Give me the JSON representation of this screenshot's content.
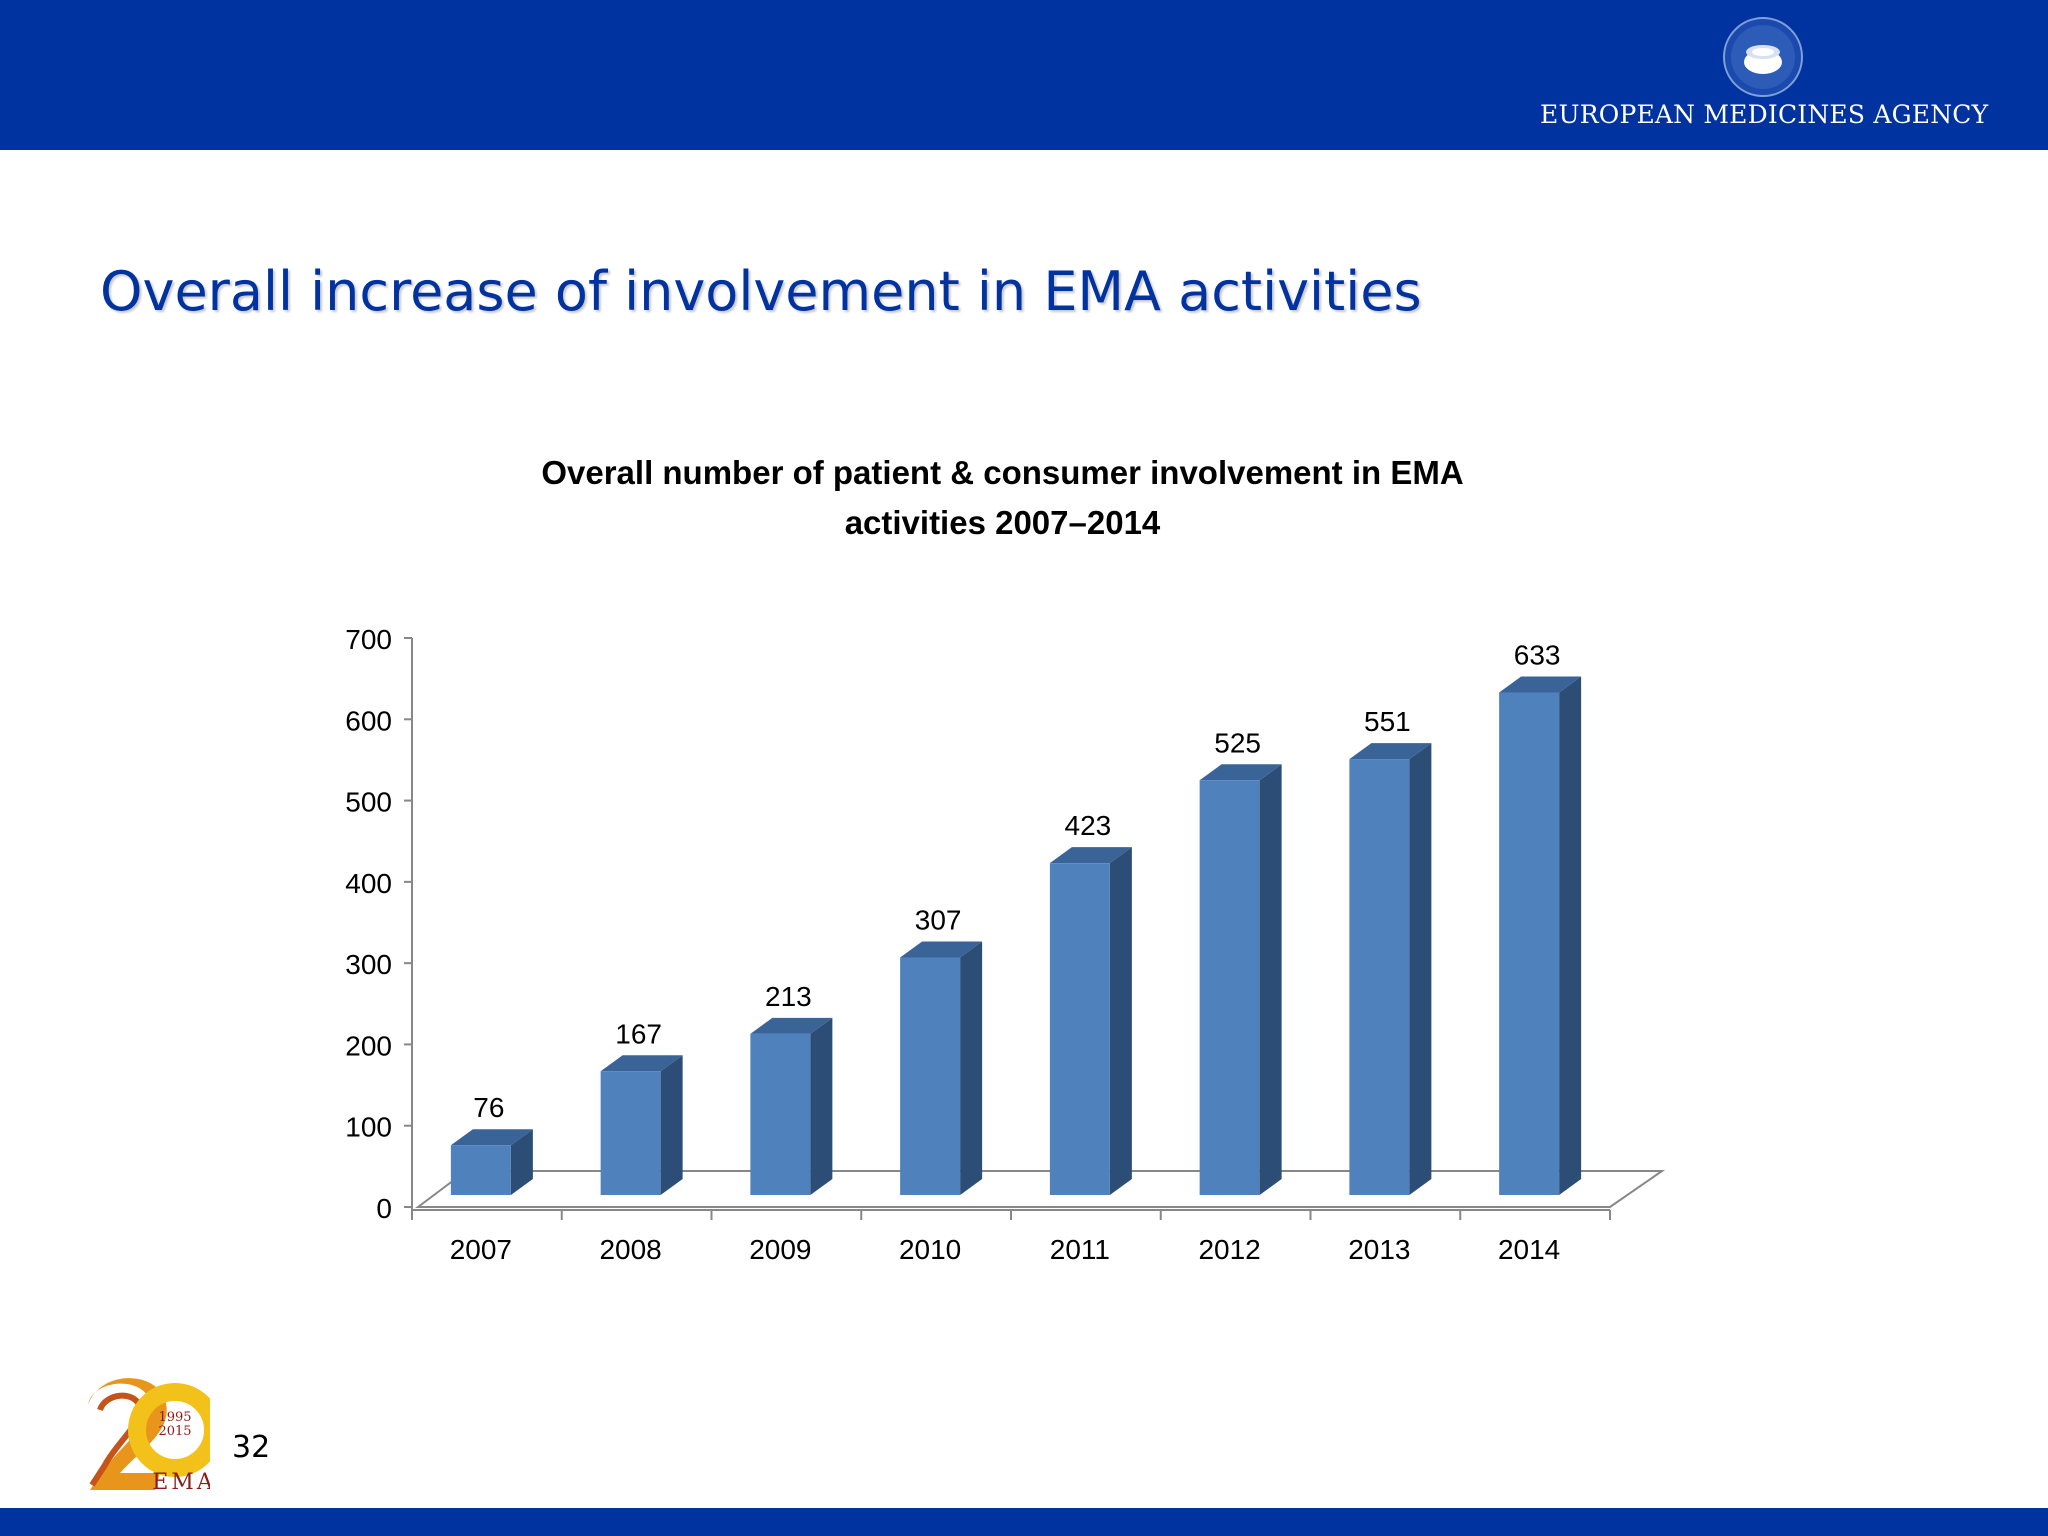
{
  "header": {
    "agency_name": "EUROPEAN MEDICINES AGENCY",
    "emblem_icon": "ema-emblem-icon"
  },
  "slide": {
    "title": "Overall increase of involvement in EMA activities",
    "number": "32"
  },
  "footer_logo": {
    "icon": "ema-20-years-logo",
    "year_start": "1995",
    "year_end": "2015",
    "text": "EMA"
  },
  "colors": {
    "brand_blue": "#0033a0",
    "bar_front": "#4f81bd",
    "bar_side": "#2c4d75",
    "bar_top": "#3a6497"
  },
  "chart_data": {
    "type": "bar",
    "title_line1": "Overall number of patient & consumer involvement in EMA",
    "title_line2": "activities   2007–2014",
    "categories": [
      "2007",
      "2008",
      "2009",
      "2010",
      "2011",
      "2012",
      "2013",
      "2014"
    ],
    "values": [
      76,
      167,
      213,
      307,
      423,
      525,
      551,
      633
    ],
    "yticks": [
      "0",
      "100",
      "200",
      "300",
      "400",
      "500",
      "600",
      "700"
    ],
    "ylim": [
      0,
      700
    ],
    "style": "3d-column",
    "legend": "none",
    "grid": false
  }
}
